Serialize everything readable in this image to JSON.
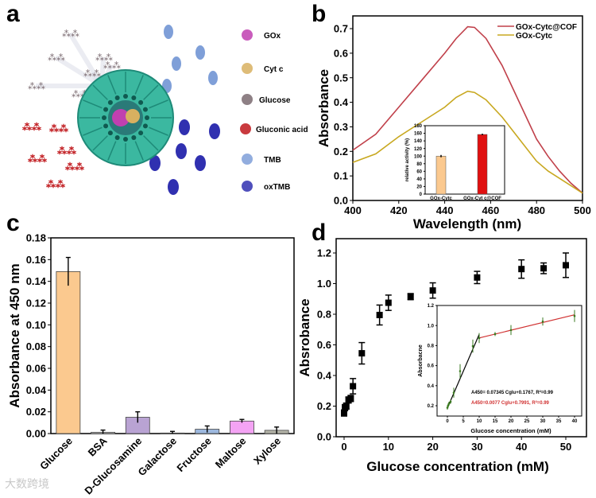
{
  "panels": {
    "a": "a",
    "b": "b",
    "c": "c",
    "d": "d"
  },
  "schematic": {
    "legend": [
      {
        "label": "GOx",
        "color": "#c040b0"
      },
      {
        "label": "Cyt c",
        "color": "#d8b060"
      },
      {
        "label": "Glucose",
        "color": "#7a6a70"
      },
      {
        "label": "Gluconic acid",
        "color": "#c0181c"
      },
      {
        "label": "TMB",
        "color": "#7f9fd8"
      },
      {
        "label": "oxTMB",
        "color": "#3030b0"
      }
    ],
    "cof_color": "#3bb8a0"
  },
  "watermark": "大数跨境",
  "chart_data": [
    {
      "id": "b",
      "type": "line",
      "xlabel": "Wavelength (nm)",
      "ylabel": "Absorbance",
      "xlim": [
        400,
        500
      ],
      "ylim": [
        0,
        0.75
      ],
      "xticks": [
        400,
        420,
        440,
        460,
        480,
        500
      ],
      "yticks": [
        "0.0",
        "0.1",
        "0.2",
        "0.3",
        "0.4",
        "0.5",
        "0.6",
        "0.7"
      ],
      "legend_position": "top-right",
      "x": [
        400,
        410,
        420,
        430,
        440,
        445,
        450,
        453,
        458,
        465,
        470,
        475,
        480,
        485,
        490,
        495,
        500
      ],
      "series": [
        {
          "name": "GOx-Cytc@COF",
          "color": "#c0404a",
          "values": [
            0.205,
            0.27,
            0.38,
            0.49,
            0.6,
            0.66,
            0.708,
            0.705,
            0.66,
            0.55,
            0.45,
            0.35,
            0.25,
            0.18,
            0.12,
            0.07,
            0.03
          ]
        },
        {
          "name": "GOx-Cytc",
          "color": "#c8a820",
          "values": [
            0.155,
            0.19,
            0.26,
            0.32,
            0.38,
            0.42,
            0.445,
            0.44,
            0.41,
            0.34,
            0.28,
            0.22,
            0.16,
            0.12,
            0.09,
            0.06,
            0.03
          ]
        }
      ],
      "inset": {
        "type": "bar",
        "ylabel": "relative activity (%)",
        "ylim": [
          0,
          180
        ],
        "yticks": [
          "0",
          "20",
          "40",
          "60",
          "80",
          "100",
          "120",
          "140",
          "160",
          "180"
        ],
        "categories": [
          "GOx-Cytc",
          "GOx-Cyt c@COF"
        ],
        "values": [
          100,
          157
        ],
        "errors": [
          3,
          2
        ],
        "colors": [
          "#fbc98f",
          "#e01010"
        ]
      }
    },
    {
      "id": "c",
      "type": "bar",
      "xlabel": "",
      "ylabel": "Absorbance at 450 nm",
      "ylim": [
        0,
        0.18
      ],
      "yticks": [
        "0.00",
        "0.02",
        "0.04",
        "0.06",
        "0.08",
        "0.10",
        "0.12",
        "0.14",
        "0.16",
        "0.18"
      ],
      "categories": [
        "Glucose",
        "BSA",
        "D-Glucosamine",
        "Galactose",
        "Fructose",
        "Maltose",
        "Xylose"
      ],
      "values": [
        0.149,
        0.0012,
        0.015,
        0.0005,
        0.004,
        0.0115,
        0.003
      ],
      "errors": [
        0.013,
        0.002,
        0.005,
        0.0015,
        0.003,
        0.0015,
        0.003
      ],
      "colors": [
        "#fbc98f",
        "#c8c8c8",
        "#b9a3d3",
        "#cfcfcf",
        "#9db8de",
        "#f4a3f4",
        "#b4b4a8"
      ]
    },
    {
      "id": "d",
      "type": "scatter",
      "xlabel": "Glucose concentration (mM)",
      "ylabel": "Absrobance",
      "xlim": [
        -1,
        53
      ],
      "ylim": [
        0,
        1.28
      ],
      "xticks": [
        0,
        10,
        20,
        30,
        40,
        50
      ],
      "yticks": [
        "0.0",
        "0.2",
        "0.4",
        "0.6",
        "0.8",
        "1.0",
        "1.2"
      ],
      "x": [
        0,
        0.2,
        0.5,
        1,
        1.5,
        2,
        4,
        8,
        10,
        15,
        20,
        30,
        40,
        45,
        50
      ],
      "y": [
        0.155,
        0.19,
        0.2,
        0.24,
        0.25,
        0.33,
        0.545,
        0.795,
        0.875,
        0.915,
        0.955,
        1.04,
        1.095,
        1.1,
        1.12
      ],
      "errors": [
        0.02,
        0.02,
        0.02,
        0.02,
        0.02,
        0.05,
        0.07,
        0.065,
        0.05,
        0.02,
        0.05,
        0.04,
        0.06,
        0.035,
        0.08
      ],
      "inset": {
        "xlabel": "Glucose concentration (mM)",
        "ylabel": "Absorbacne",
        "xlim": [
          -1,
          42
        ],
        "ylim": [
          0.1,
          1.2
        ],
        "xticks": [
          0,
          5,
          10,
          15,
          20,
          25,
          30,
          35,
          40
        ],
        "yticks": [
          "0.2",
          "0.4",
          "0.6",
          "0.8",
          "1.0",
          "1.2"
        ],
        "x": [
          0,
          0.2,
          0.5,
          1,
          2,
          4,
          8,
          10,
          15,
          20,
          30,
          40
        ],
        "y": [
          0.18,
          0.2,
          0.22,
          0.24,
          0.33,
          0.545,
          0.795,
          0.875,
          0.915,
          0.955,
          1.04,
          1.095
        ],
        "errors": [
          0.02,
          0.02,
          0.02,
          0.02,
          0.05,
          0.07,
          0.065,
          0.05,
          0.02,
          0.05,
          0.04,
          0.06
        ],
        "fit_low": {
          "slope": 0.07345,
          "intercept": 0.1767,
          "range": [
            0,
            10
          ],
          "color": "#000000",
          "equation": "A450= 0.07345 Cglu+0.1767, R²=0.99"
        },
        "fit_high": {
          "slope": 0.0077,
          "intercept": 0.7991,
          "range": [
            10,
            40
          ],
          "color": "#d03030",
          "equation": "A450=0.0077 Cglu+0.7991, R²=0.99"
        },
        "marker_color": "#3a7a20"
      }
    }
  ]
}
